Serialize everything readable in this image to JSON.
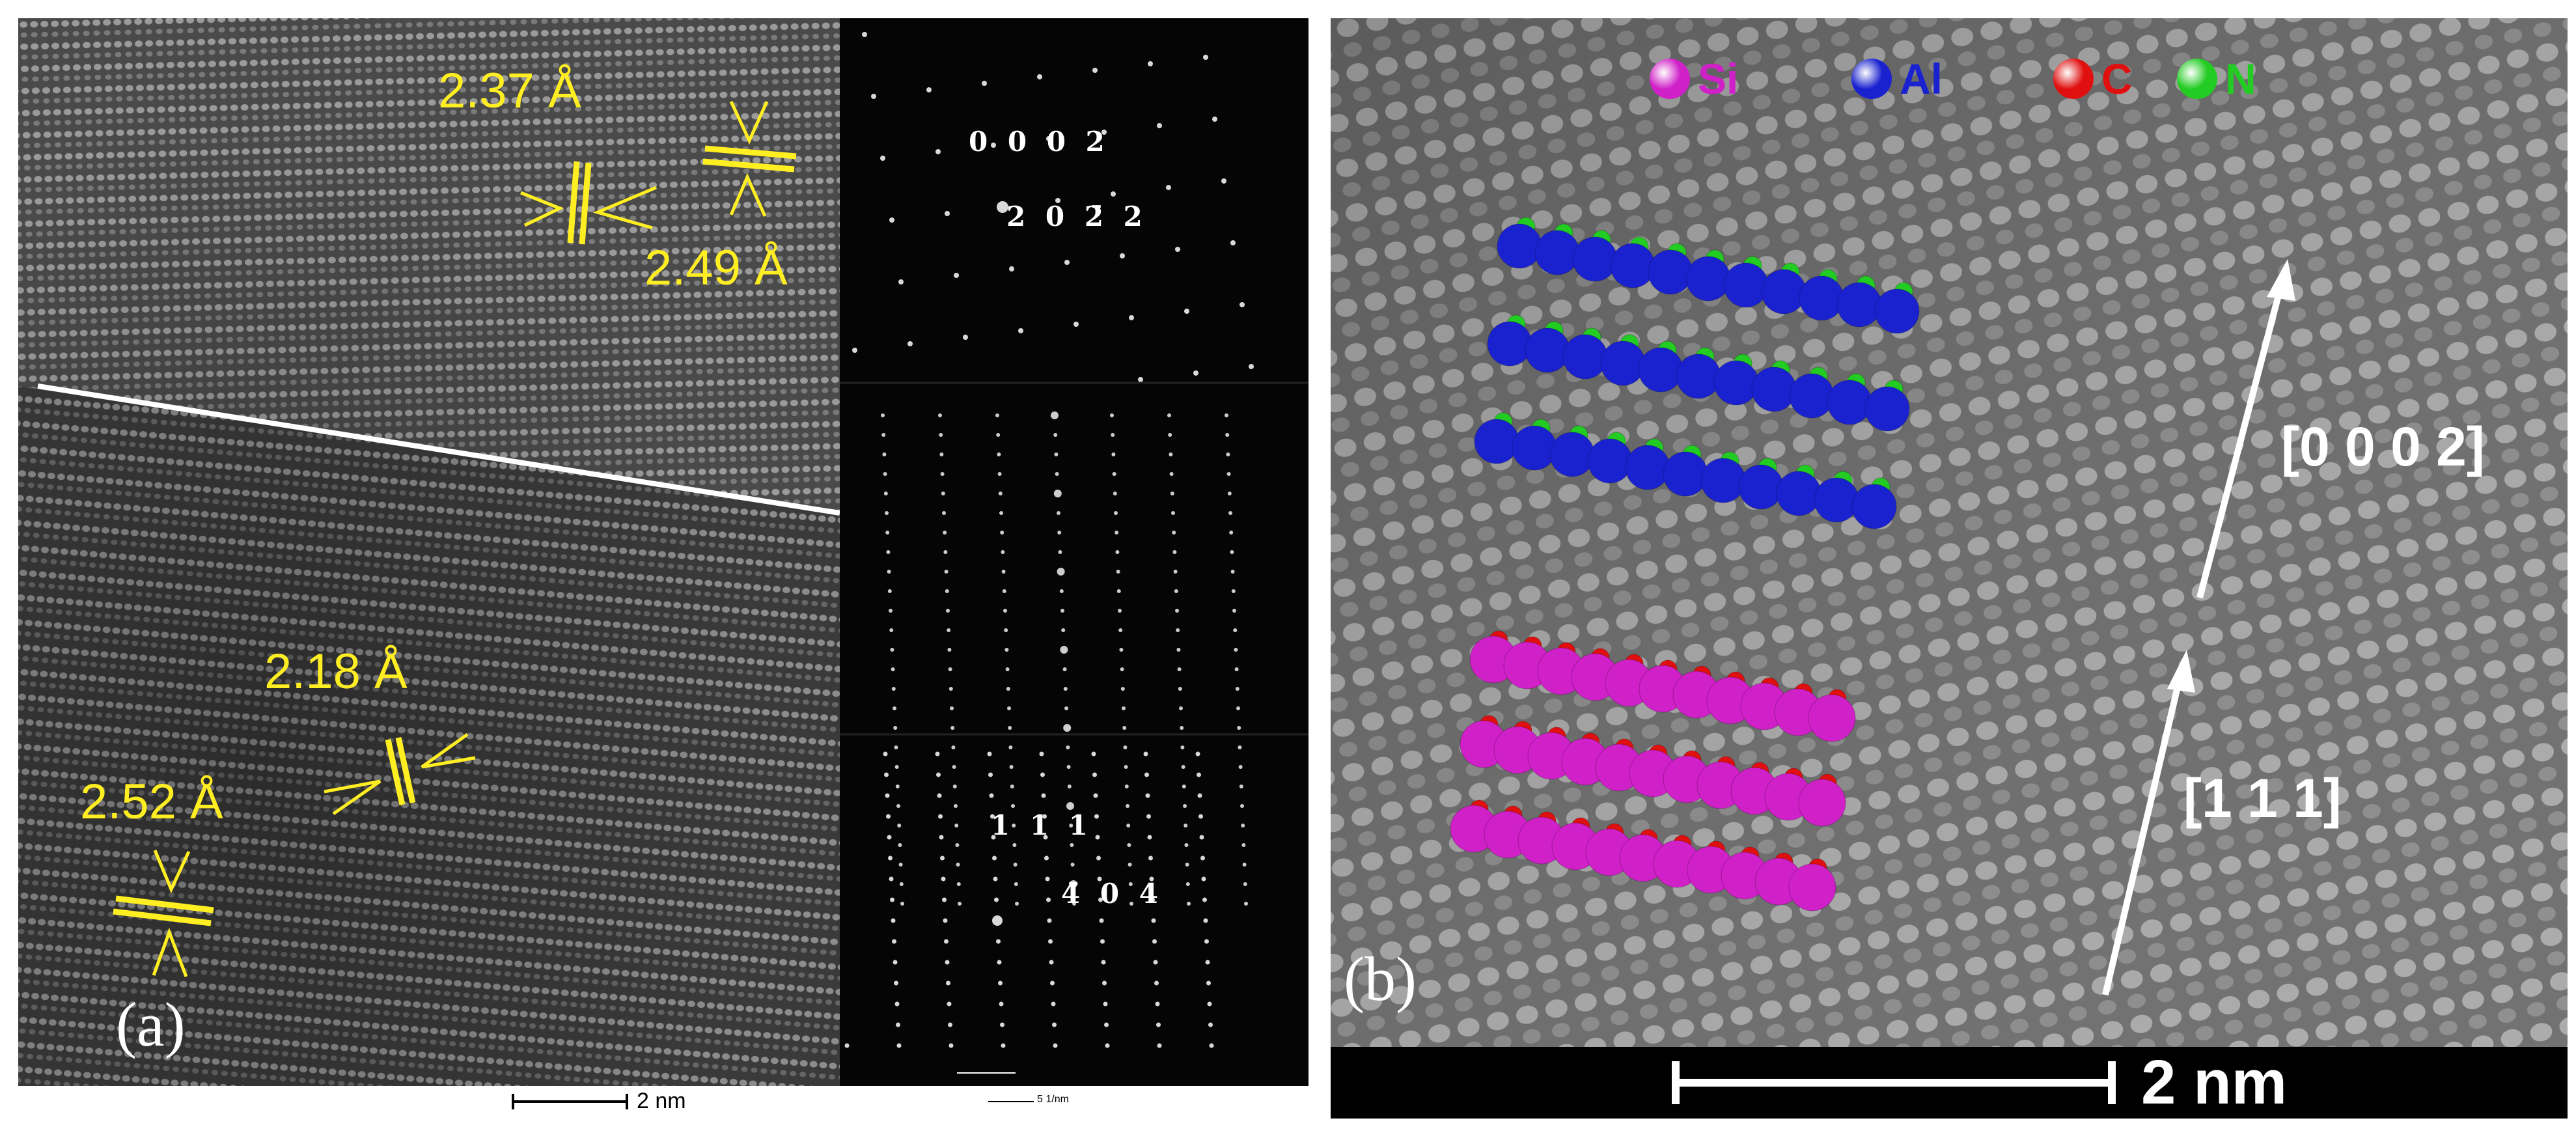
{
  "panel_a": {
    "label": "(a)",
    "d_spacings": [
      "2.37 Å",
      "2.49 Å",
      "2.18 Å",
      "2.52 Å"
    ],
    "saed_top": {
      "spot1": "0 0 0 2",
      "spot2_pre": "2 0 ",
      "spot2_bar": "2̄",
      "spot2_post": " 2"
    },
    "saed_bottom": {
      "spot1": "1 1 1",
      "spot2_bar": "4̄",
      "spot2_post": " 0 4"
    },
    "scale_bar_text": "2 nm",
    "saed_scale_text": "5 1/nm",
    "colors": {
      "annotation": "#ffee22",
      "boundary_line": "#ffffff"
    }
  },
  "panel_b": {
    "label": "(b)",
    "legend": [
      {
        "symbol": "Si",
        "color": "#d020c8"
      },
      {
        "symbol": "Al",
        "color": "#1a22d0"
      },
      {
        "symbol": "C",
        "color": "#e01010"
      },
      {
        "symbol": "N",
        "color": "#22cc22"
      }
    ],
    "directions": [
      "[0 0 0 2]",
      "[1 1 1]"
    ],
    "scale_bar_text": "2 nm"
  }
}
